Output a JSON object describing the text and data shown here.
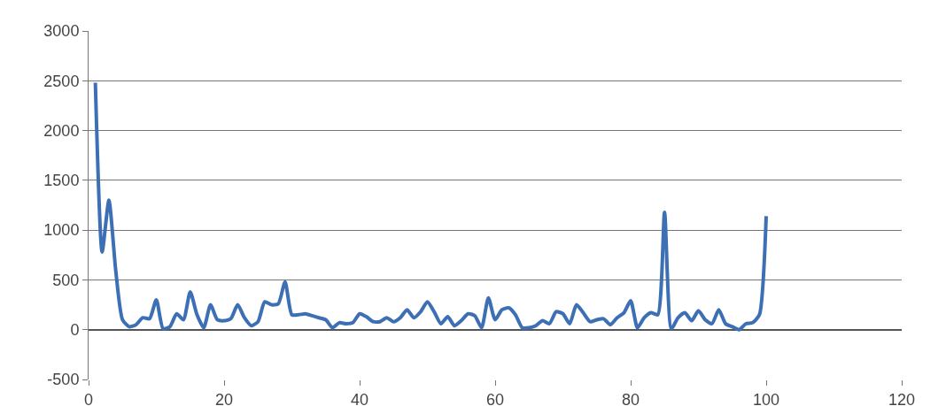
{
  "chart_data": {
    "type": "line",
    "x": [
      1,
      2,
      3,
      4,
      5,
      6,
      7,
      8,
      9,
      10,
      11,
      12,
      13,
      14,
      15,
      16,
      17,
      18,
      19,
      20,
      21,
      22,
      23,
      24,
      25,
      26,
      27,
      28,
      29,
      30,
      31,
      32,
      33,
      34,
      35,
      36,
      37,
      38,
      39,
      40,
      41,
      42,
      43,
      44,
      45,
      46,
      47,
      48,
      49,
      50,
      51,
      52,
      53,
      54,
      55,
      56,
      57,
      58,
      59,
      60,
      61,
      62,
      63,
      64,
      65,
      66,
      67,
      68,
      69,
      70,
      71,
      72,
      73,
      74,
      75,
      76,
      77,
      78,
      79,
      80,
      81,
      82,
      83,
      84,
      85,
      86,
      87,
      88,
      89,
      90,
      91,
      92,
      93,
      94,
      95,
      96,
      97,
      98,
      99,
      100
    ],
    "series": [
      {
        "color": "#3d6fb4",
        "values": [
          2480,
          780,
          1300,
          600,
          100,
          30,
          50,
          120,
          110,
          300,
          10,
          30,
          160,
          100,
          380,
          150,
          20,
          250,
          100,
          90,
          110,
          250,
          120,
          40,
          80,
          280,
          250,
          260,
          480,
          150,
          150,
          160,
          140,
          120,
          100,
          20,
          70,
          60,
          70,
          160,
          130,
          80,
          80,
          120,
          80,
          120,
          200,
          120,
          180,
          280,
          180,
          60,
          130,
          40,
          90,
          160,
          140,
          20,
          320,
          100,
          200,
          220,
          150,
          20,
          20,
          40,
          90,
          60,
          180,
          160,
          60,
          250,
          170,
          80,
          100,
          110,
          50,
          120,
          170,
          290,
          20,
          120,
          170,
          150,
          1180,
          10,
          120,
          170,
          90,
          190,
          100,
          60,
          200,
          60,
          30,
          0,
          60,
          70,
          150,
          1140
        ]
      }
    ],
    "xlim": [
      0,
      120
    ],
    "xticks": [
      0,
      20,
      40,
      60,
      80,
      100,
      120
    ],
    "ylim": [
      -500,
      3000
    ],
    "yticks": [
      -500,
      0,
      500,
      1000,
      1500,
      2000,
      2500,
      3000
    ],
    "grid": "y",
    "legend": false,
    "marker": "none",
    "line_style": "solid"
  }
}
